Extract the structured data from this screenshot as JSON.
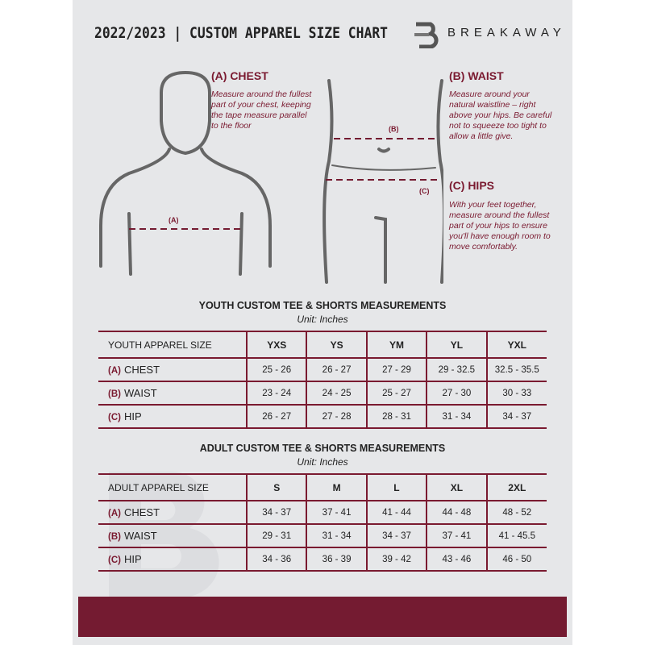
{
  "header": {
    "title": "2022/2023  |  CUSTOM APPAREL SIZE CHART",
    "brand": "BREAKAWAY"
  },
  "guide": {
    "chest": {
      "heading": "(A) CHEST",
      "marker": "(A)",
      "text": "Measure around the fullest part of your chest, keeping the tape measure parallel to the floor"
    },
    "waist": {
      "heading": "(B) WAIST",
      "marker": "(B)",
      "text": "Measure around your natural waistline – right above your hips. Be careful not to squeeze too tight to allow a little give."
    },
    "hips": {
      "heading": "(C) HIPS",
      "marker": "(C)",
      "text": "With your feet together, measure around the fullest part of your hips to ensure you'll have enough room to move comfortably."
    }
  },
  "colors": {
    "accent": "#741b31",
    "panel": "#e6e7e9"
  },
  "youth": {
    "title": "YOUTH CUSTOM TEE & SHORTS MEASUREMENTS",
    "unit": "Unit: Inches",
    "columns": [
      "YOUTH APPAREL SIZE",
      "YXS",
      "YS",
      "YM",
      "YL",
      "YXL"
    ],
    "rows": [
      {
        "label": "(A)",
        "name": "CHEST",
        "values": [
          "25 - 26",
          "26 - 27",
          "27 - 29",
          "29 - 32.5",
          "32.5 - 35.5"
        ]
      },
      {
        "label": "(B)",
        "name": "WAIST",
        "values": [
          "23 - 24",
          "24 - 25",
          "25 - 27",
          "27 - 30",
          "30 - 33"
        ]
      },
      {
        "label": "(C)",
        "name": "HIP",
        "values": [
          "26 - 27",
          "27 - 28",
          "28 - 31",
          "31 - 34",
          "34 - 37"
        ]
      }
    ]
  },
  "adult": {
    "title": "ADULT CUSTOM TEE & SHORTS MEASUREMENTS",
    "unit": "Unit: Inches",
    "columns": [
      "ADULT APPAREL SIZE",
      "S",
      "M",
      "L",
      "XL",
      "2XL"
    ],
    "rows": [
      {
        "label": "(A)",
        "name": "CHEST",
        "values": [
          "34 - 37",
          "37 - 41",
          "41 - 44",
          "44 - 48",
          "48 - 52"
        ]
      },
      {
        "label": "(B)",
        "name": "WAIST",
        "values": [
          "29 - 31",
          "31 - 34",
          "34 - 37",
          "37 - 41",
          "41 - 45.5"
        ]
      },
      {
        "label": "(C)",
        "name": "HIP",
        "values": [
          "34 - 36",
          "36 - 39",
          "39 - 42",
          "43 - 46",
          "46 - 50"
        ]
      }
    ]
  }
}
